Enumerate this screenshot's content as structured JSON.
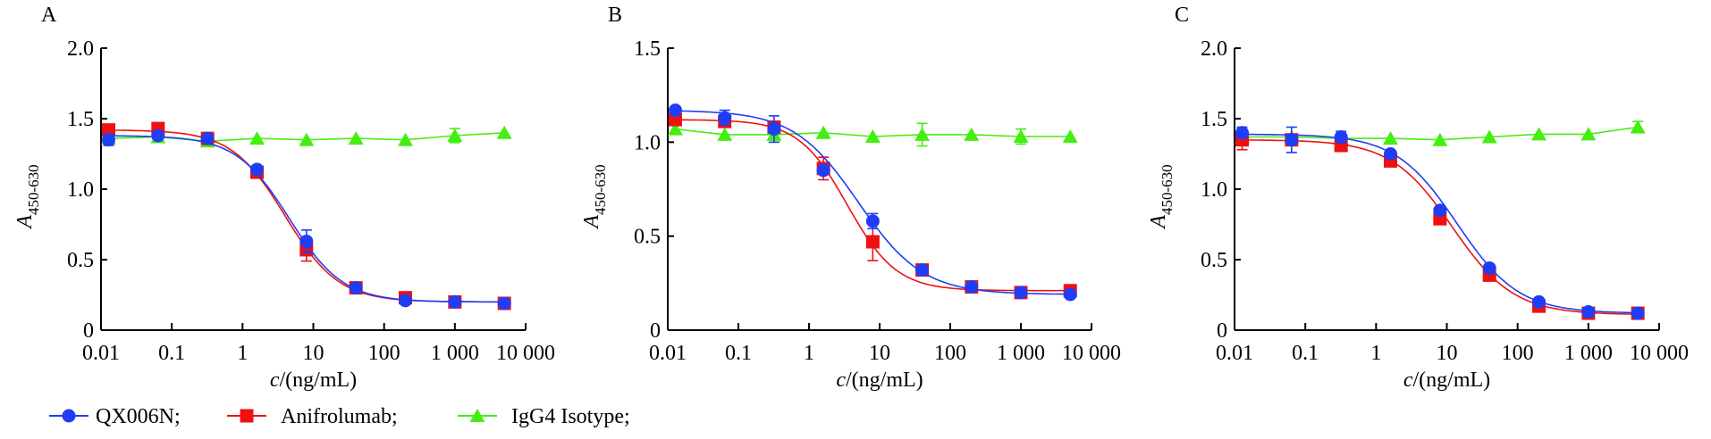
{
  "chart_data": [
    {
      "type": "line",
      "panel_label": "A",
      "xlabel_italic": "c",
      "xlabel_rest": "/(ng/mL)",
      "ylabel_italic": "A",
      "ylabel_sub": "450-630",
      "xscale": "log",
      "xlim": [
        0.01,
        10000
      ],
      "ylim": [
        0,
        2.0
      ],
      "xticks": [
        0.01,
        0.1,
        1,
        10,
        100,
        1000,
        10000
      ],
      "xtick_labels": [
        "0.01",
        "0.1",
        "1",
        "10",
        "100",
        "1 000",
        "10 000"
      ],
      "yticks": [
        0,
        0.5,
        1.0,
        1.5,
        2.0
      ],
      "ytick_labels": [
        "0",
        "0.5",
        "1.0",
        "1.5",
        "2.0"
      ],
      "x": [
        0.0128,
        0.064,
        0.32,
        1.6,
        8,
        40,
        200,
        1000,
        5000
      ],
      "series": [
        {
          "name": "QX006N",
          "values": [
            1.35,
            1.38,
            1.36,
            1.14,
            0.63,
            0.3,
            0.21,
            0.2,
            0.19
          ],
          "err": [
            0.04,
            0.01,
            0.01,
            0.01,
            0.08,
            0.01,
            0.01,
            0.01,
            0.01
          ],
          "fit": {
            "top": 1.38,
            "bottom": 0.2,
            "ec50": 4.6,
            "hill": 1.15
          }
        },
        {
          "name": "Anifrolumab",
          "values": [
            1.42,
            1.43,
            1.36,
            1.12,
            0.57,
            0.3,
            0.23,
            0.2,
            0.19
          ],
          "err": [
            0.02,
            0.01,
            0.01,
            0.02,
            0.08,
            0.01,
            0.01,
            0.01,
            0.01
          ],
          "fit": {
            "top": 1.42,
            "bottom": 0.2,
            "ec50": 4.0,
            "hill": 1.15
          }
        },
        {
          "name": "IgG4 Isotype",
          "values": [
            1.36,
            1.37,
            1.34,
            1.36,
            1.35,
            1.36,
            1.35,
            1.38,
            1.4
          ],
          "err": [
            0.02,
            0.01,
            0.02,
            0.01,
            0.01,
            0.01,
            0.01,
            0.05,
            0.01
          ]
        }
      ]
    },
    {
      "type": "line",
      "panel_label": "B",
      "xlabel_italic": "c",
      "xlabel_rest": "/(ng/mL)",
      "ylabel_italic": "A",
      "ylabel_sub": "450-630",
      "xscale": "log",
      "xlim": [
        0.01,
        10000
      ],
      "ylim": [
        0,
        1.5
      ],
      "xticks": [
        0.01,
        0.1,
        1,
        10,
        100,
        1000,
        10000
      ],
      "xtick_labels": [
        "0.01",
        "0.1",
        "1",
        "10",
        "100",
        "1 000",
        "10 000"
      ],
      "yticks": [
        0,
        0.5,
        1.0,
        1.5
      ],
      "ytick_labels": [
        "0",
        "0.5",
        "1.0",
        "1.5"
      ],
      "x": [
        0.0128,
        0.064,
        0.32,
        1.6,
        8,
        40,
        200,
        1000,
        5000
      ],
      "series": [
        {
          "name": "QX006N",
          "values": [
            1.17,
            1.13,
            1.07,
            0.85,
            0.58,
            0.32,
            0.23,
            0.2,
            0.19
          ],
          "err": [
            0.01,
            0.04,
            0.07,
            0.02,
            0.04,
            0.01,
            0.01,
            0.01,
            0.01
          ],
          "fit": {
            "top": 1.17,
            "bottom": 0.19,
            "ec50": 5.0,
            "hill": 0.95
          }
        },
        {
          "name": "Anifrolumab",
          "values": [
            1.12,
            1.11,
            1.08,
            0.86,
            0.47,
            0.32,
            0.23,
            0.2,
            0.21
          ],
          "err": [
            0.03,
            0.02,
            0.02,
            0.06,
            0.1,
            0.01,
            0.01,
            0.01,
            0.01
          ],
          "fit": {
            "top": 1.12,
            "bottom": 0.21,
            "ec50": 3.5,
            "hill": 1.25
          }
        },
        {
          "name": "IgG4 Isotype",
          "values": [
            1.07,
            1.04,
            1.04,
            1.05,
            1.03,
            1.04,
            1.04,
            1.03,
            1.03
          ],
          "err": [
            0.02,
            0.01,
            0.04,
            0.01,
            0.01,
            0.06,
            0.01,
            0.04,
            0.01
          ]
        }
      ]
    },
    {
      "type": "line",
      "panel_label": "C",
      "xlabel_italic": "c",
      "xlabel_rest": "/(ng/mL)",
      "ylabel_italic": "A",
      "ylabel_sub": "450-630",
      "xscale": "log",
      "xlim": [
        0.01,
        10000
      ],
      "ylim": [
        0,
        2.0
      ],
      "xticks": [
        0.01,
        0.1,
        1,
        10,
        100,
        1000,
        10000
      ],
      "xtick_labels": [
        "0.01",
        "0.1",
        "1",
        "10",
        "100",
        "1 000",
        "10 000"
      ],
      "yticks": [
        0,
        0.5,
        1.0,
        1.5,
        2.0
      ],
      "ytick_labels": [
        "0",
        "0.5",
        "1.0",
        "1.5",
        "2.0"
      ],
      "x": [
        0.0128,
        0.064,
        0.32,
        1.6,
        8,
        40,
        200,
        1000,
        5000
      ],
      "series": [
        {
          "name": "QX006N",
          "values": [
            1.4,
            1.35,
            1.37,
            1.25,
            0.85,
            0.44,
            0.2,
            0.13,
            0.12
          ],
          "err": [
            0.04,
            0.09,
            0.04,
            0.01,
            0.01,
            0.01,
            0.01,
            0.01,
            0.01
          ],
          "fit": {
            "top": 1.39,
            "bottom": 0.12,
            "ec50": 14,
            "hill": 1.0
          }
        },
        {
          "name": "Anifrolumab",
          "values": [
            1.35,
            1.35,
            1.31,
            1.2,
            0.79,
            0.39,
            0.17,
            0.12,
            0.12
          ],
          "err": [
            0.07,
            0.02,
            0.01,
            0.01,
            0.02,
            0.01,
            0.01,
            0.01,
            0.01
          ],
          "fit": {
            "top": 1.35,
            "bottom": 0.11,
            "ec50": 12,
            "hill": 1.0
          }
        },
        {
          "name": "IgG4 Isotype",
          "values": [
            1.37,
            1.37,
            1.36,
            1.36,
            1.35,
            1.37,
            1.39,
            1.39,
            1.44
          ],
          "err": [
            0.01,
            0.01,
            0.01,
            0.01,
            0.01,
            0.01,
            0.01,
            0.01,
            0.04
          ]
        }
      ]
    }
  ],
  "legend": {
    "items": [
      {
        "label": "QX006N;",
        "color": "#1f3df5",
        "marker": "circle"
      },
      {
        "label": "Anifrolumab;",
        "color": "#f01010",
        "marker": "square"
      },
      {
        "label": "IgG4 Isotype;",
        "color": "#44ee11",
        "marker": "triangle"
      }
    ]
  }
}
